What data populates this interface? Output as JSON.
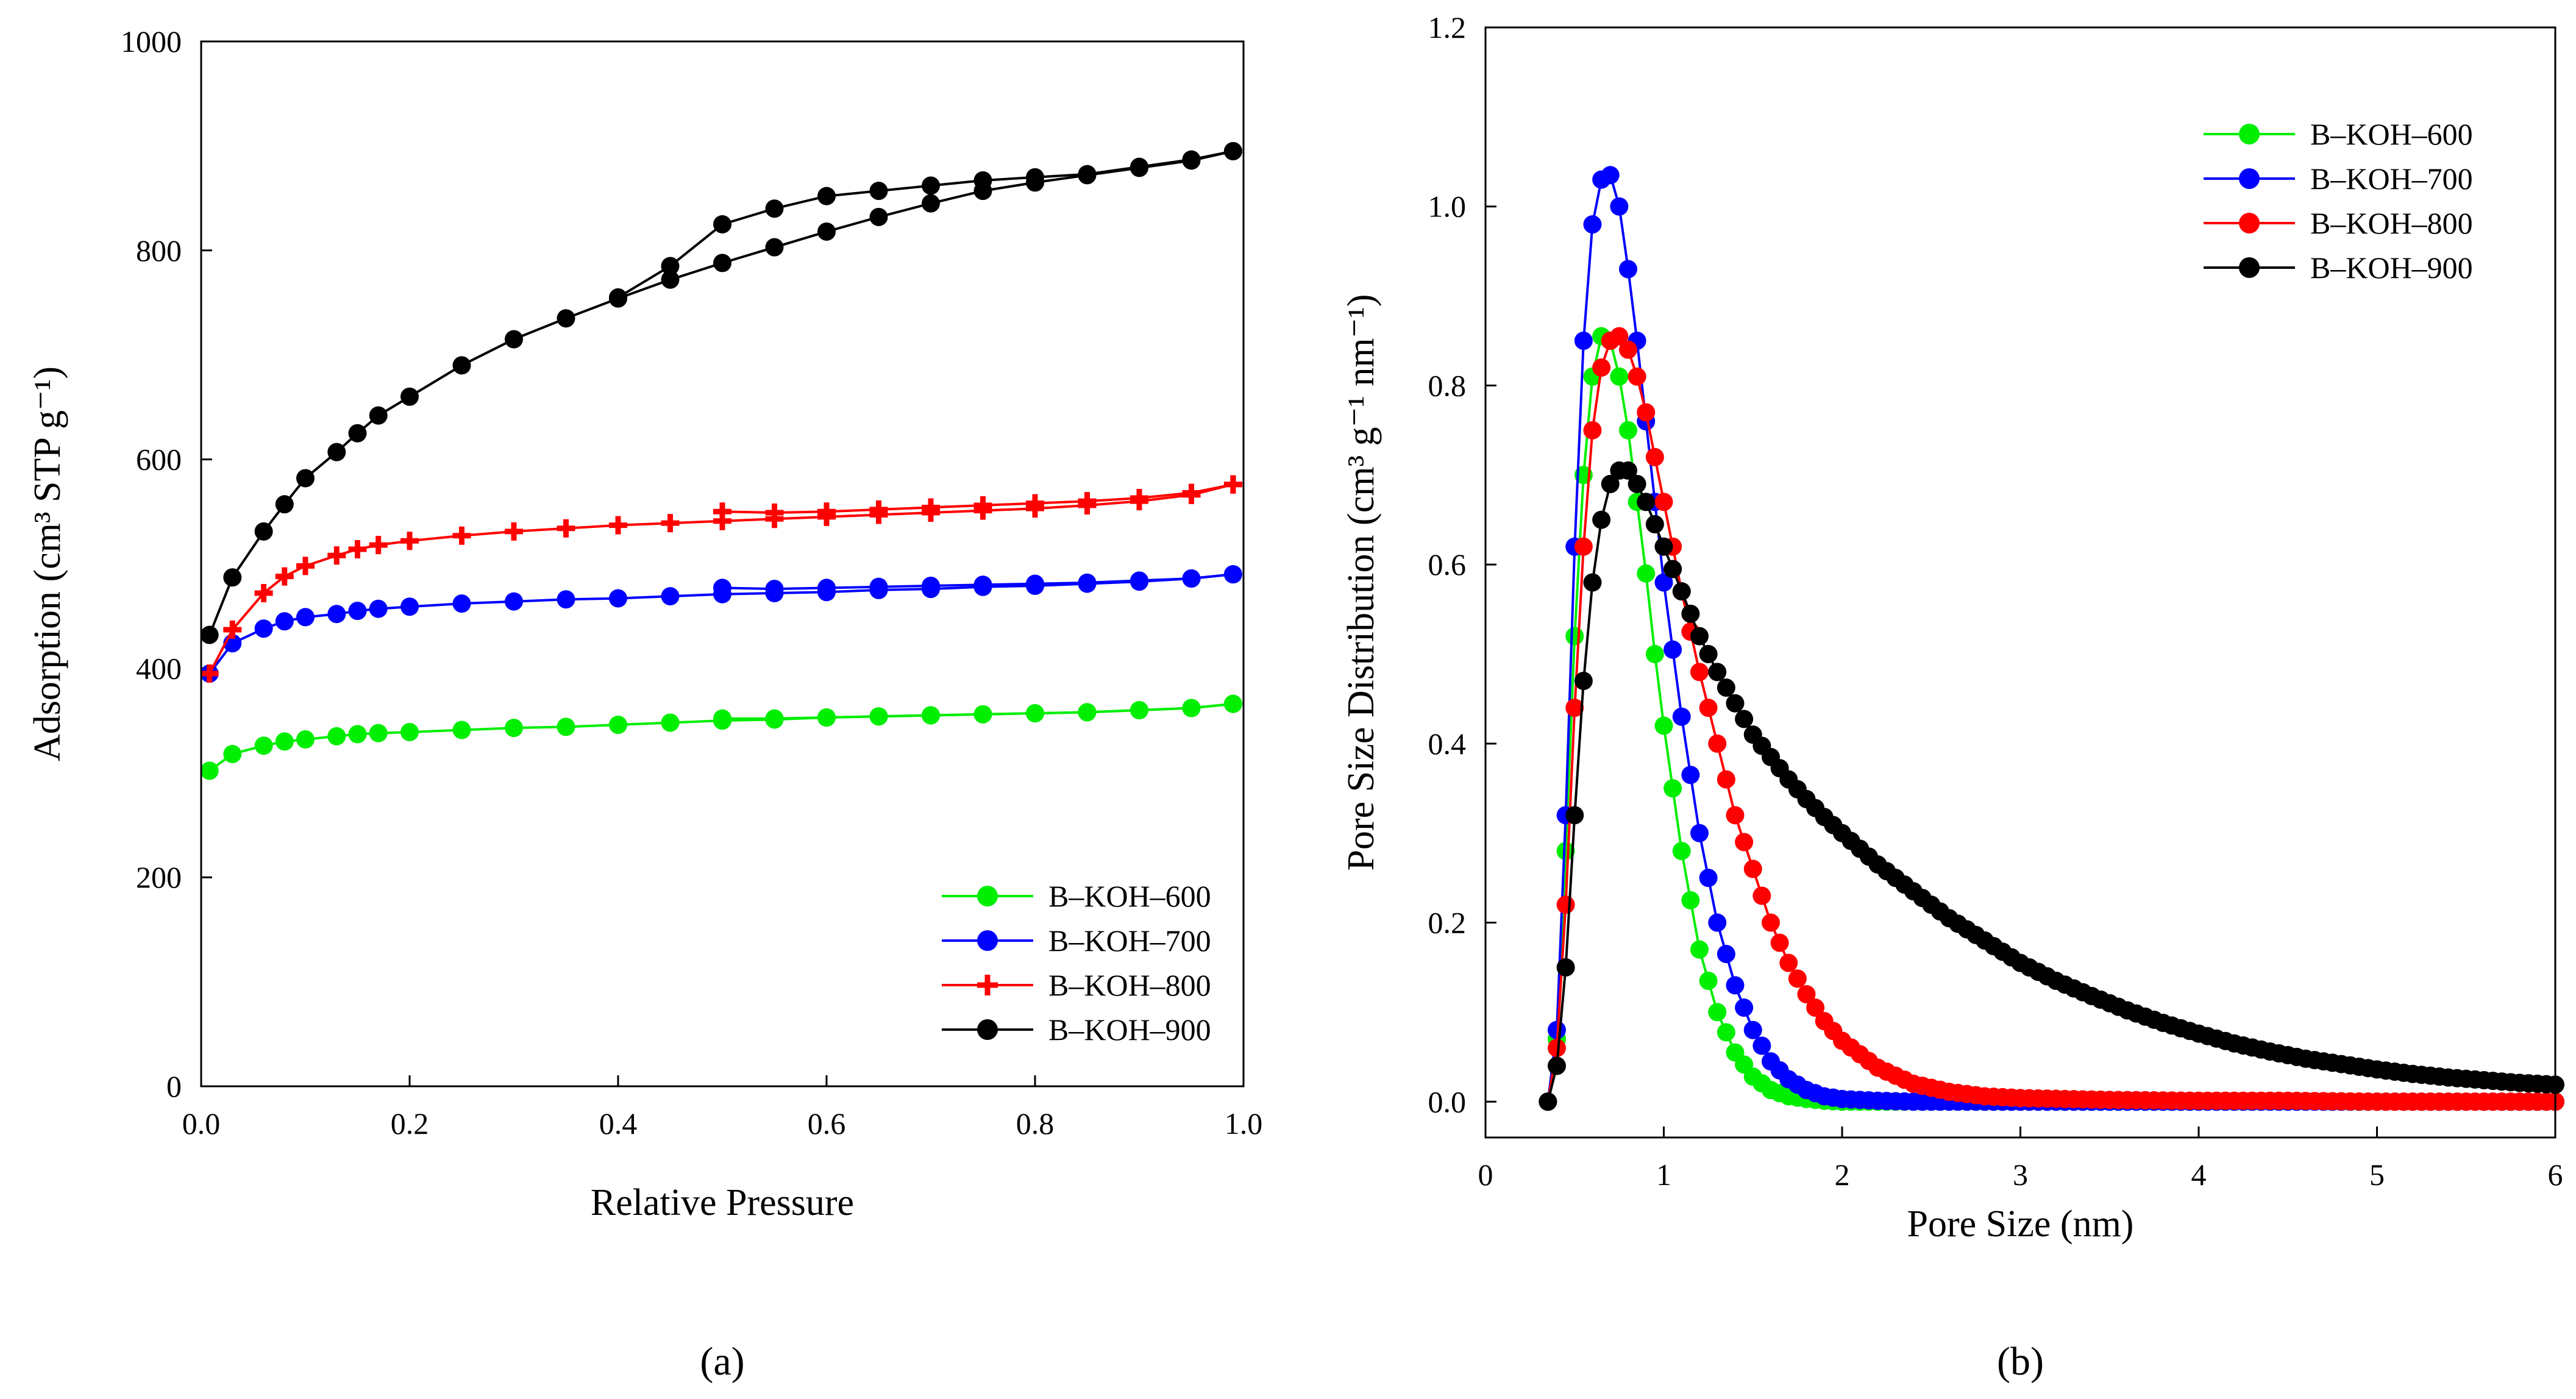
{
  "chart_data": [
    {
      "type": "scatter",
      "panel_label": "(a)",
      "xlabel": "Relative Pressure",
      "ylabel": "Adsorption (cm³ STP g⁻¹)",
      "xlim": [
        0,
        1.0
      ],
      "ylim": [
        0,
        1000
      ],
      "xticks": [
        "0.0",
        "0.2",
        "0.4",
        "0.6",
        "0.8",
        "1.0"
      ],
      "yticks": [
        "0",
        "200",
        "400",
        "600",
        "800",
        "1000"
      ],
      "legend_position": "bottom-right",
      "series": [
        {
          "name": "B–KOH–600",
          "color": "#00ee00",
          "marker": "circle",
          "adsorption": [
            [
              0.008,
              302
            ],
            [
              0.03,
              318
            ],
            [
              0.06,
              326
            ],
            [
              0.08,
              330
            ],
            [
              0.1,
              332
            ],
            [
              0.13,
              335
            ],
            [
              0.15,
              337
            ],
            [
              0.17,
              338
            ],
            [
              0.2,
              339
            ],
            [
              0.25,
              341
            ],
            [
              0.3,
              343
            ],
            [
              0.35,
              344
            ],
            [
              0.4,
              346
            ],
            [
              0.45,
              348
            ],
            [
              0.5,
              350
            ],
            [
              0.55,
              351
            ],
            [
              0.6,
              353
            ],
            [
              0.65,
              354
            ],
            [
              0.7,
              355
            ],
            [
              0.75,
              356
            ],
            [
              0.8,
              357
            ],
            [
              0.85,
              358
            ],
            [
              0.9,
              360
            ],
            [
              0.95,
              362
            ],
            [
              0.99,
              366
            ]
          ],
          "desorption": [
            [
              0.99,
              366
            ],
            [
              0.95,
              362
            ],
            [
              0.9,
              360
            ],
            [
              0.85,
              358
            ],
            [
              0.8,
              357
            ],
            [
              0.75,
              356
            ],
            [
              0.7,
              355
            ],
            [
              0.65,
              354
            ],
            [
              0.6,
              353
            ],
            [
              0.55,
              352
            ],
            [
              0.5,
              352
            ]
          ]
        },
        {
          "name": "B–KOH–700",
          "color": "#0000ff",
          "marker": "circle",
          "adsorption": [
            [
              0.008,
              395
            ],
            [
              0.03,
              424
            ],
            [
              0.06,
              438
            ],
            [
              0.08,
              445
            ],
            [
              0.1,
              449
            ],
            [
              0.13,
              452
            ],
            [
              0.15,
              455
            ],
            [
              0.17,
              457
            ],
            [
              0.2,
              459
            ],
            [
              0.25,
              462
            ],
            [
              0.3,
              464
            ],
            [
              0.35,
              466
            ],
            [
              0.4,
              467
            ],
            [
              0.45,
              469
            ],
            [
              0.5,
              471
            ],
            [
              0.55,
              472
            ],
            [
              0.6,
              473
            ],
            [
              0.65,
              475
            ],
            [
              0.7,
              476
            ],
            [
              0.75,
              478
            ],
            [
              0.8,
              479
            ],
            [
              0.85,
              481
            ],
            [
              0.9,
              483
            ],
            [
              0.95,
              486
            ],
            [
              0.99,
              490
            ]
          ],
          "desorption": [
            [
              0.99,
              490
            ],
            [
              0.95,
              486
            ],
            [
              0.9,
              484
            ],
            [
              0.85,
              482
            ],
            [
              0.8,
              481
            ],
            [
              0.75,
              480
            ],
            [
              0.7,
              479
            ],
            [
              0.65,
              478
            ],
            [
              0.6,
              477
            ],
            [
              0.55,
              476
            ],
            [
              0.5,
              477
            ]
          ]
        },
        {
          "name": "B–KOH–800",
          "color": "#ff0000",
          "marker": "cross",
          "adsorption": [
            [
              0.008,
              395
            ],
            [
              0.03,
              437
            ],
            [
              0.06,
              472
            ],
            [
              0.08,
              488
            ],
            [
              0.1,
              498
            ],
            [
              0.13,
              508
            ],
            [
              0.15,
              514
            ],
            [
              0.17,
              518
            ],
            [
              0.2,
              522
            ],
            [
              0.25,
              527
            ],
            [
              0.3,
              531
            ],
            [
              0.35,
              534
            ],
            [
              0.4,
              537
            ],
            [
              0.45,
              539
            ],
            [
              0.5,
              541
            ],
            [
              0.55,
              543
            ],
            [
              0.6,
              545
            ],
            [
              0.65,
              547
            ],
            [
              0.7,
              549
            ],
            [
              0.75,
              551
            ],
            [
              0.8,
              553
            ],
            [
              0.85,
              556
            ],
            [
              0.9,
              560
            ],
            [
              0.95,
              566
            ],
            [
              0.99,
              576
            ]
          ],
          "desorption": [
            [
              0.99,
              576
            ],
            [
              0.95,
              568
            ],
            [
              0.9,
              563
            ],
            [
              0.85,
              560
            ],
            [
              0.8,
              558
            ],
            [
              0.75,
              556
            ],
            [
              0.7,
              554
            ],
            [
              0.65,
              552
            ],
            [
              0.6,
              550
            ],
            [
              0.55,
              549
            ],
            [
              0.5,
              550
            ]
          ]
        },
        {
          "name": "B–KOH–900",
          "color": "#000000",
          "marker": "circle",
          "adsorption": [
            [
              0.008,
              432
            ],
            [
              0.03,
              487
            ],
            [
              0.06,
              531
            ],
            [
              0.08,
              557
            ],
            [
              0.1,
              582
            ],
            [
              0.13,
              607
            ],
            [
              0.15,
              625
            ],
            [
              0.17,
              642
            ],
            [
              0.2,
              660
            ],
            [
              0.25,
              690
            ],
            [
              0.3,
              715
            ],
            [
              0.35,
              735
            ],
            [
              0.4,
              754
            ],
            [
              0.45,
              772
            ],
            [
              0.5,
              788
            ],
            [
              0.55,
              803
            ],
            [
              0.6,
              818
            ],
            [
              0.65,
              832
            ],
            [
              0.7,
              845
            ],
            [
              0.75,
              857
            ],
            [
              0.8,
              865
            ],
            [
              0.85,
              872
            ],
            [
              0.9,
              879
            ],
            [
              0.95,
              886
            ],
            [
              0.99,
              895
            ]
          ],
          "desorption": [
            [
              0.99,
              895
            ],
            [
              0.95,
              887
            ],
            [
              0.9,
              880
            ],
            [
              0.85,
              873
            ],
            [
              0.8,
              870
            ],
            [
              0.75,
              867
            ],
            [
              0.7,
              862
            ],
            [
              0.65,
              857
            ],
            [
              0.6,
              852
            ],
            [
              0.55,
              840
            ],
            [
              0.5,
              825
            ],
            [
              0.45,
              785
            ],
            [
              0.4,
              755
            ]
          ]
        }
      ]
    },
    {
      "type": "scatter",
      "panel_label": "(b)",
      "xlabel": "Pore Size (nm)",
      "ylabel": "Pore Size Distribution (cm³ g⁻¹ nm⁻¹)",
      "xlim": [
        0,
        6
      ],
      "ylim": [
        -0.04,
        1.2
      ],
      "xticks": [
        "0",
        "1",
        "2",
        "3",
        "4",
        "5",
        "6"
      ],
      "yticks": [
        "0.0",
        "0.2",
        "0.4",
        "0.6",
        "0.8",
        "1.0",
        "1.2"
      ],
      "legend_position": "top-right",
      "series": [
        {
          "name": "B–KOH–600",
          "color": "#00ee00",
          "x": [
            0.35,
            0.4,
            0.45,
            0.5,
            0.55,
            0.6,
            0.65,
            0.7,
            0.75,
            0.8,
            0.85,
            0.9,
            0.95,
            1.0,
            1.1,
            1.2,
            1.3,
            1.4,
            1.5,
            1.6,
            1.7,
            1.8,
            1.9,
            2.0,
            2.2,
            2.4,
            2.6,
            2.8,
            3.0,
            3.5,
            4.0,
            4.5,
            5.0,
            5.5,
            6.0
          ],
          "y": [
            0.0,
            0.07,
            0.28,
            0.52,
            0.7,
            0.81,
            0.855,
            0.85,
            0.81,
            0.75,
            0.67,
            0.59,
            0.5,
            0.42,
            0.28,
            0.17,
            0.1,
            0.055,
            0.028,
            0.013,
            0.006,
            0.003,
            0.001,
            0.0,
            0.0,
            0.0,
            0.0,
            0.0,
            0.0,
            0.0,
            0.0,
            0.0,
            0.0,
            0.0,
            0.0
          ]
        },
        {
          "name": "B–KOH–700",
          "color": "#0000ff",
          "x": [
            0.35,
            0.4,
            0.45,
            0.5,
            0.55,
            0.6,
            0.65,
            0.7,
            0.75,
            0.8,
            0.85,
            0.9,
            0.95,
            1.0,
            1.1,
            1.2,
            1.3,
            1.4,
            1.5,
            1.6,
            1.7,
            1.8,
            1.9,
            2.0,
            2.2,
            2.4,
            2.6,
            2.8,
            3.0,
            3.5,
            4.0,
            4.5,
            5.0,
            5.5,
            6.0
          ],
          "y": [
            0.0,
            0.08,
            0.32,
            0.62,
            0.85,
            0.98,
            1.03,
            1.035,
            1.0,
            0.93,
            0.85,
            0.76,
            0.67,
            0.58,
            0.43,
            0.3,
            0.2,
            0.13,
            0.08,
            0.045,
            0.025,
            0.013,
            0.006,
            0.003,
            0.001,
            0.0,
            0.0,
            0.0,
            0.0,
            0.0,
            0.0,
            0.0,
            0.0,
            0.0,
            0.0
          ]
        },
        {
          "name": "B–KOH–800",
          "color": "#ff0000",
          "x": [
            0.35,
            0.4,
            0.45,
            0.5,
            0.55,
            0.6,
            0.65,
            0.7,
            0.75,
            0.8,
            0.85,
            0.9,
            0.95,
            1.0,
            1.1,
            1.2,
            1.3,
            1.4,
            1.5,
            1.6,
            1.7,
            1.8,
            1.9,
            2.0,
            2.2,
            2.4,
            2.6,
            2.8,
            3.0,
            3.5,
            4.0,
            4.5,
            5.0,
            5.5,
            6.0
          ],
          "y": [
            0.0,
            0.06,
            0.22,
            0.44,
            0.62,
            0.75,
            0.82,
            0.85,
            0.855,
            0.84,
            0.81,
            0.77,
            0.72,
            0.67,
            0.57,
            0.48,
            0.4,
            0.32,
            0.26,
            0.2,
            0.155,
            0.12,
            0.09,
            0.068,
            0.038,
            0.02,
            0.011,
            0.006,
            0.004,
            0.002,
            0.001,
            0.001,
            0.0,
            0.0,
            0.0
          ]
        },
        {
          "name": "B–KOH–900",
          "color": "#000000",
          "x": [
            0.35,
            0.4,
            0.45,
            0.5,
            0.55,
            0.6,
            0.65,
            0.7,
            0.75,
            0.8,
            0.85,
            0.9,
            0.95,
            1.0,
            1.1,
            1.2,
            1.3,
            1.4,
            1.5,
            1.6,
            1.7,
            1.8,
            1.9,
            2.0,
            2.2,
            2.4,
            2.6,
            2.8,
            3.0,
            3.2,
            3.4,
            3.6,
            3.8,
            4.0,
            4.2,
            4.4,
            4.6,
            4.8,
            5.0,
            5.2,
            5.4,
            5.6,
            5.8,
            6.0
          ],
          "y": [
            0.0,
            0.04,
            0.15,
            0.32,
            0.47,
            0.58,
            0.65,
            0.69,
            0.705,
            0.705,
            0.69,
            0.67,
            0.645,
            0.62,
            0.57,
            0.52,
            0.48,
            0.445,
            0.41,
            0.385,
            0.36,
            0.338,
            0.318,
            0.3,
            0.265,
            0.235,
            0.205,
            0.18,
            0.155,
            0.135,
            0.118,
            0.102,
            0.088,
            0.076,
            0.065,
            0.056,
            0.048,
            0.042,
            0.036,
            0.031,
            0.027,
            0.024,
            0.021,
            0.019
          ]
        }
      ]
    }
  ]
}
